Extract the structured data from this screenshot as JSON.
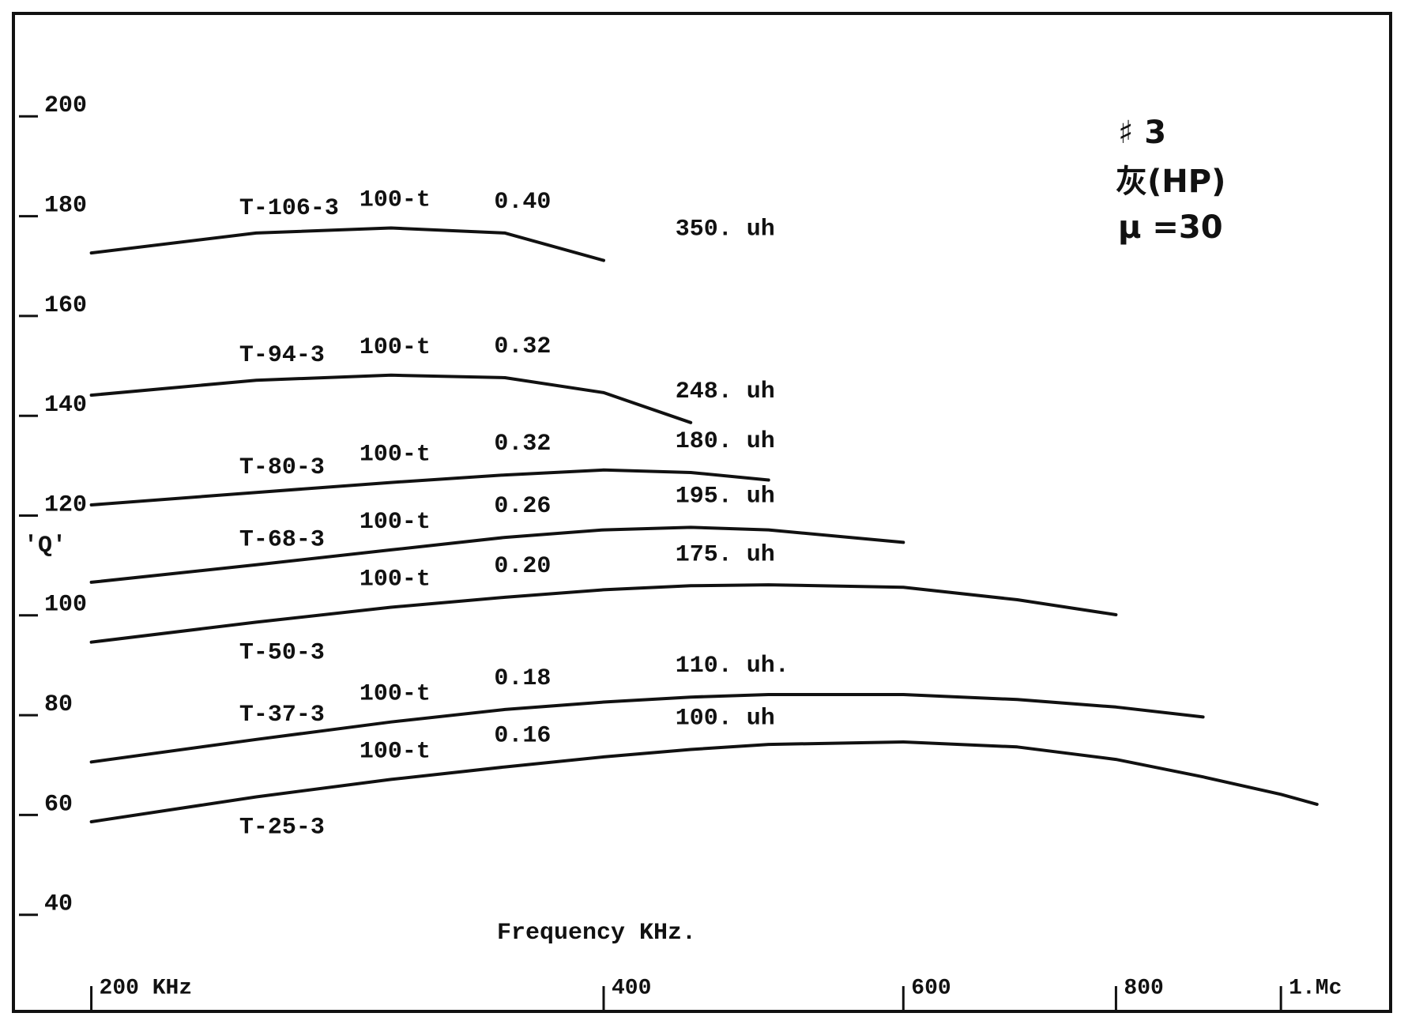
{
  "chart_data": {
    "type": "line",
    "x_label": "Frequency   KHz.",
    "y_label": "'Q'",
    "annotations": [
      "♯ 3",
      "灰(HP)",
      "μ =30"
    ],
    "log_x": true,
    "color": "#111111",
    "x": [
      200,
      250,
      300,
      350,
      400,
      450,
      500,
      600,
      700,
      800,
      900,
      1000,
      1050
    ],
    "series": [
      {
        "name": "T-106-3",
        "turns": "100-t",
        "wire": "0.40",
        "inductance": "350. uh",
        "color": "#111111",
        "values": [
          172,
          176,
          177,
          176,
          170.5,
          null,
          null,
          null,
          null,
          null,
          null,
          null,
          null
        ]
      },
      {
        "name": "T-94-3",
        "turns": "100-t",
        "wire": "0.32",
        "inductance": "248. uh",
        "color": "#111111",
        "values": [
          143.5,
          146.5,
          147.5,
          147,
          144,
          138,
          null,
          null,
          null,
          null,
          null,
          null,
          null
        ]
      },
      {
        "name": "T-80-3",
        "turns": "100-t",
        "wire": "0.32",
        "inductance": "180. uh",
        "color": "#111111",
        "values": [
          121.5,
          124,
          126,
          127.5,
          128.5,
          128,
          126.5,
          null,
          null,
          null,
          null,
          null,
          null
        ]
      },
      {
        "name": "T-68-3",
        "turns": "100-t",
        "wire": "0.26",
        "inductance": "195. uh",
        "color": "#111111",
        "values": [
          106,
          109.5,
          112.5,
          115,
          116.5,
          117,
          116.5,
          114,
          null,
          null,
          null,
          null,
          null
        ]
      },
      {
        "name": "T-50-3",
        "turns": "100-t",
        "wire": "0.20",
        "inductance": "175. uh",
        "color": "#111111",
        "values": [
          94,
          98,
          101,
          103,
          104.5,
          105.3,
          105.5,
          105,
          102.5,
          99.5,
          null,
          null,
          null
        ]
      },
      {
        "name": "T-37-3",
        "turns": "100-t",
        "wire": "0.18",
        "inductance": "110. uh.",
        "color": "#111111",
        "values": [
          70,
          74.5,
          78,
          80.5,
          82,
          83,
          83.5,
          83.5,
          82.5,
          81,
          79,
          null,
          null
        ]
      },
      {
        "name": "T-25-3",
        "turns": "100-t",
        "wire": "0.16",
        "inductance": "100. uh",
        "color": "#111111",
        "values": [
          58,
          63,
          66.5,
          69,
          71,
          72.5,
          73.5,
          74,
          73,
          70.5,
          67,
          63.5,
          61.5
        ]
      }
    ],
    "xlim": [
      180,
      1160
    ],
    "ylim": [
      20,
      220
    ],
    "xticks": [
      {
        "value": 200,
        "label": "200 KHz"
      },
      400,
      600,
      800,
      {
        "value": 1000,
        "label": "1.Mc"
      }
    ],
    "yticks": [
      40,
      60,
      80,
      100,
      120,
      140,
      160,
      180,
      200
    ]
  }
}
